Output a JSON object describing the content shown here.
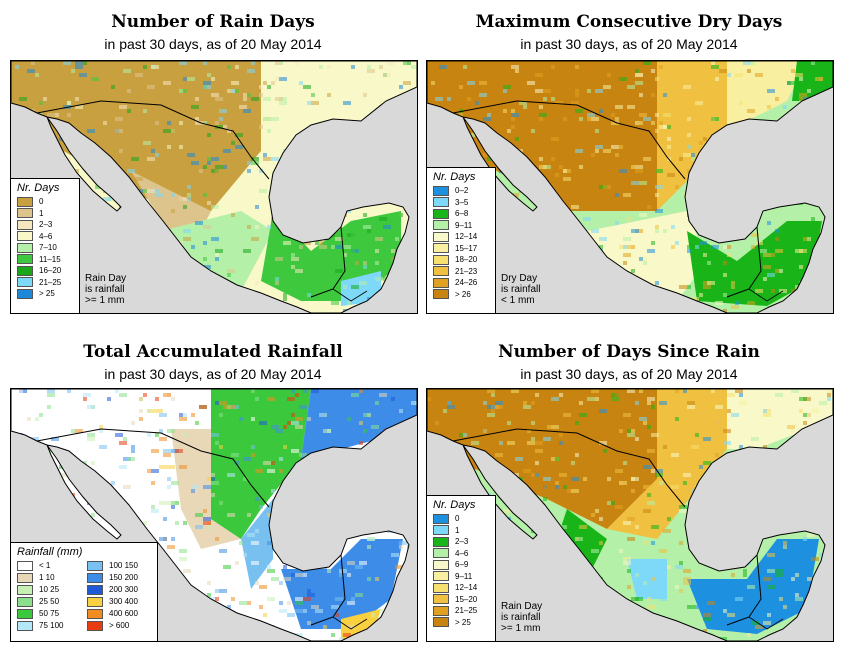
{
  "panels": [
    {
      "title": "Number of Rain Days",
      "subtitle": "in past 30 days, as of  20 May 2014",
      "legend_title": "Nr. Days",
      "legend": [
        {
          "label": "0",
          "color": "#c8a040"
        },
        {
          "label": "1",
          "color": "#dcc48c"
        },
        {
          "label": "2–3",
          "color": "#f5e6c0"
        },
        {
          "label": "4–6",
          "color": "#f8f8c8"
        },
        {
          "label": "7–10",
          "color": "#b4f0a8"
        },
        {
          "label": "11–15",
          "color": "#3ec83e"
        },
        {
          "label": "16–20",
          "color": "#1aa81a"
        },
        {
          "label": "21–25",
          "color": "#7ed8f8"
        },
        {
          "label": "> 25",
          "color": "#1e88d8"
        }
      ],
      "note": [
        "Rain Day",
        "is rainfall",
        ">= 1 mm"
      ]
    },
    {
      "title": "Maximum Consecutive Dry Days",
      "subtitle": "in past 30 days, as of  20 May 2014",
      "legend_title": "Nr. Days",
      "legend": [
        {
          "label": "0–2",
          "color": "#1e90e0"
        },
        {
          "label": "3–5",
          "color": "#7ed8f8"
        },
        {
          "label": "6–8",
          "color": "#18b418"
        },
        {
          "label": "9–11",
          "color": "#b4f0a8"
        },
        {
          "label": "12–14",
          "color": "#f8f8c8"
        },
        {
          "label": "15–17",
          "color": "#f8f0a0"
        },
        {
          "label": "18–20",
          "color": "#f8e070"
        },
        {
          "label": "21–23",
          "color": "#f0c040"
        },
        {
          "label": "24–26",
          "color": "#e0a020"
        },
        {
          "label": "> 26",
          "color": "#c88410"
        }
      ],
      "note": [
        "Dry Day",
        "is rainfall",
        "< 1 mm"
      ]
    },
    {
      "title": "Total Accumulated Rainfall",
      "subtitle": "in past 30 days, as of  20 May 2014",
      "legend_title": "Rainfall (mm)",
      "legend": [
        {
          "label": "< 1",
          "color": "#ffffff"
        },
        {
          "label": "1    10",
          "color": "#e8d8b8"
        },
        {
          "label": "10    25",
          "color": "#c8f0b4"
        },
        {
          "label": "25    50",
          "color": "#8ce08c"
        },
        {
          "label": "50    75",
          "color": "#3cc83c"
        },
        {
          "label": "75    100",
          "color": "#b4e8f8"
        },
        {
          "label": "100    150",
          "color": "#78c0f0"
        },
        {
          "label": "150    200",
          "color": "#3c8ce8"
        },
        {
          "label": "200    300",
          "color": "#1e5ad8"
        },
        {
          "label": "300    400",
          "color": "#f8d040"
        },
        {
          "label": "400    600",
          "color": "#f08c20"
        },
        {
          "label": "> 600",
          "color": "#e83c10"
        }
      ]
    },
    {
      "title": "Number of Days Since Rain",
      "subtitle": "in past 30 days, as of  20 May 2014",
      "legend_title": "Nr. Days",
      "legend": [
        {
          "label": "0",
          "color": "#1e90e0"
        },
        {
          "label": "1",
          "color": "#7ed8f8"
        },
        {
          "label": "2–3",
          "color": "#18b418"
        },
        {
          "label": "4–6",
          "color": "#b4f0a8"
        },
        {
          "label": "6–9",
          "color": "#f8f8c8"
        },
        {
          "label": "9–11",
          "color": "#f8f0a0"
        },
        {
          "label": "12–14",
          "color": "#f8e070"
        },
        {
          "label": "15–20",
          "color": "#f0c040"
        },
        {
          "label": "21–25",
          "color": "#e0a020"
        },
        {
          "label": "> 25",
          "color": "#c88410"
        }
      ],
      "note": [
        "Rain Day",
        "is rainfall",
        ">= 1 mm"
      ]
    }
  ]
}
